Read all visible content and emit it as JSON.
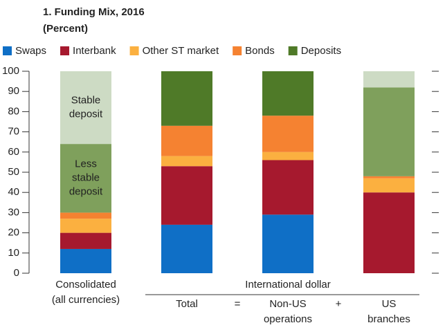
{
  "chart_data": {
    "type": "stacked_bar",
    "title": "1. Funding Mix, 2016",
    "subtitle": "(Percent)",
    "categories": [
      [
        "Consolidated",
        "(all currencies)"
      ],
      [
        "Total"
      ],
      [
        "Non-US",
        "operations"
      ],
      [
        "US",
        "branches"
      ]
    ],
    "group_label": "International dollar",
    "operators": [
      "=",
      "+"
    ],
    "series": [
      {
        "name": "Swaps",
        "color": "#0f6fc6",
        "values": [
          12,
          24,
          29,
          0
        ]
      },
      {
        "name": "Interbank",
        "color": "#a6192e",
        "values": [
          8,
          29,
          27,
          40
        ]
      },
      {
        "name": "Other ST market",
        "color": "#fbb040",
        "values": [
          7,
          5,
          4,
          7
        ]
      },
      {
        "name": "Bonds",
        "color": "#f58231",
        "values": [
          3,
          15,
          18,
          1
        ]
      },
      {
        "name": "Deposits",
        "color": "#4f7a28",
        "values": [
          0,
          27,
          22,
          0
        ]
      },
      {
        "color": "#7fa05c",
        "legend": false,
        "values": [
          34,
          0,
          0,
          44
        ]
      },
      {
        "color": "#cddbc4",
        "legend": false,
        "values": [
          36,
          0,
          0,
          8
        ]
      }
    ],
    "annotations": [
      {
        "lines": [
          "Stable",
          "deposit"
        ],
        "bar": 0,
        "series": 6
      },
      {
        "lines": [
          "Less",
          "stable",
          "deposit"
        ],
        "bar": 0,
        "series": 5
      }
    ],
    "ylim": [
      0,
      100
    ],
    "yticks": [
      0,
      10,
      20,
      30,
      40,
      50,
      60,
      70,
      80,
      90,
      100
    ]
  }
}
